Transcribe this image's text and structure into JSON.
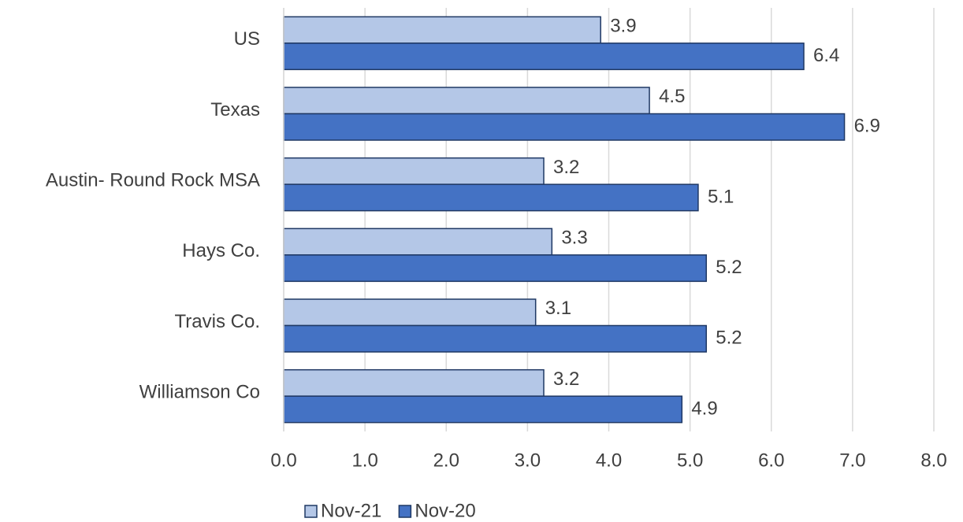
{
  "chart_data": {
    "type": "hbar",
    "categories": [
      "US",
      "Texas",
      "Austin- Round Rock MSA",
      "Hays Co.",
      "Travis Co.",
      "Williamson Co"
    ],
    "series": [
      {
        "name": "Nov-21",
        "color": "#b4c7e7",
        "values": [
          3.9,
          4.5,
          3.2,
          3.3,
          3.1,
          3.2
        ]
      },
      {
        "name": "Nov-20",
        "color": "#4472c4",
        "values": [
          6.4,
          6.9,
          5.1,
          5.2,
          5.2,
          4.9
        ]
      }
    ],
    "xlim": [
      0,
      8
    ],
    "xticks": [
      {
        "value": 0,
        "label": "0.0"
      },
      {
        "value": 1,
        "label": "1.0"
      },
      {
        "value": 2,
        "label": "2.0"
      },
      {
        "value": 3,
        "label": "3.0"
      },
      {
        "value": 4,
        "label": "4.0"
      },
      {
        "value": 5,
        "label": "5.0"
      },
      {
        "value": 6,
        "label": "6.0"
      },
      {
        "value": 7,
        "label": "7.0"
      },
      {
        "value": 8,
        "label": "8.0"
      }
    ],
    "grid": true,
    "legend": "bottom"
  }
}
